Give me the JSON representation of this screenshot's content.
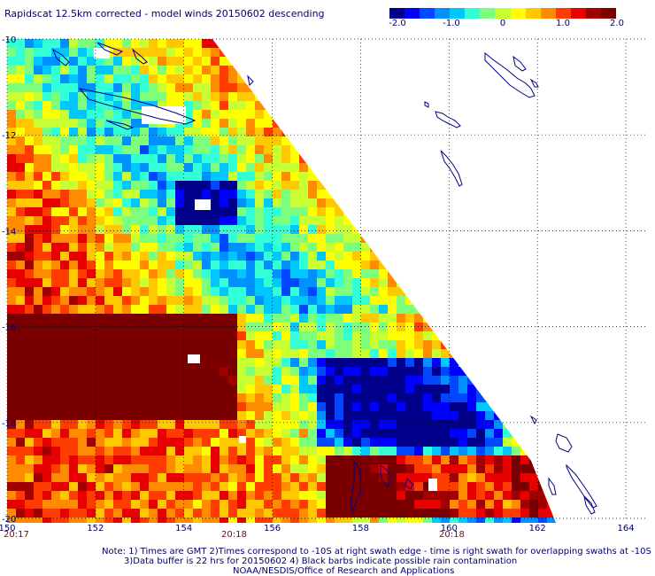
{
  "title": "Rapidscat 12.5km corrected - model winds 20150602 descending",
  "colorbar": {
    "ticks": [
      "-2.0",
      "-1.0",
      "0",
      "1.0",
      "2.0"
    ],
    "colors": [
      "#00008b",
      "#0000ff",
      "#0048ff",
      "#0090ff",
      "#00c8ff",
      "#33ffd6",
      "#7dff7d",
      "#c8ff33",
      "#ffff00",
      "#ffc800",
      "#ff8c00",
      "#ff3c00",
      "#e60000",
      "#a00000",
      "#7a0000"
    ]
  },
  "axes": {
    "x_ticks": [
      "150",
      "152",
      "154",
      "156",
      "158",
      "160",
      "162",
      "164"
    ],
    "y_ticks": [
      "-10",
      "-12",
      "-14",
      "-16",
      "-18",
      "-20"
    ],
    "x_range": [
      150,
      164.5
    ],
    "y_range": [
      -20,
      -10
    ]
  },
  "times": [
    "20:17",
    "20:18",
    "20:18"
  ],
  "notes": [
    "Note: 1) Times are GMT 2)Times correspond to -10S at right swath edge - time is right swath for overlapping swaths at -10S",
    "3)Data buffer is 22 hrs for 20150602 4) Black barbs indicate possible rain contamination",
    "NOAA/NESDIS/Office of Research and Applications"
  ]
}
